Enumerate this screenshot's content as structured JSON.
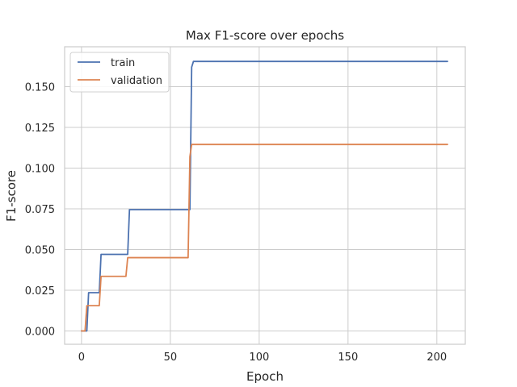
{
  "chart_data": {
    "type": "line",
    "title": "Max F1-score over epochs",
    "xlabel": "Epoch",
    "ylabel": "F1-score",
    "xlim": [
      -9.5,
      216
    ],
    "ylim": [
      -0.0082,
      0.1745
    ],
    "x_ticks": [
      0,
      50,
      100,
      150,
      200
    ],
    "x_tick_labels": [
      "0",
      "50",
      "100",
      "150",
      "200"
    ],
    "y_ticks": [
      0.0,
      0.025,
      0.05,
      0.075,
      0.1,
      0.125,
      0.15
    ],
    "y_tick_labels": [
      "0.000",
      "0.025",
      "0.050",
      "0.075",
      "0.100",
      "0.125",
      "0.150"
    ],
    "grid": true,
    "legend_position": "top-left",
    "series": [
      {
        "name": "train",
        "color": "#4c72b0",
        "x": [
          0,
          2,
          3,
          4,
          10,
          11,
          26,
          27,
          61,
          62,
          63,
          206
        ],
        "y": [
          0,
          0,
          0,
          0.0235,
          0.0235,
          0.047,
          0.047,
          0.0745,
          0.0745,
          0.162,
          0.1655,
          0.1655
        ]
      },
      {
        "name": "validation",
        "color": "#dd8452",
        "x": [
          0,
          2,
          3,
          10,
          11,
          25,
          26,
          60,
          61,
          62,
          206
        ],
        "y": [
          0,
          0,
          0.0155,
          0.0155,
          0.0335,
          0.0335,
          0.045,
          0.045,
          0.107,
          0.1145,
          0.1145
        ]
      }
    ]
  }
}
